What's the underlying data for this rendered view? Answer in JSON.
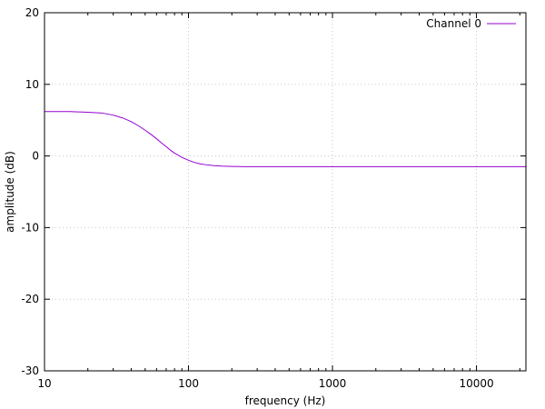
{
  "chart_data": {
    "type": "line",
    "title": "",
    "xlabel": "frequency (Hz)",
    "ylabel": "amplitude (dB)",
    "xscale": "log",
    "xlim": [
      10,
      22050
    ],
    "ylim": [
      -30,
      20
    ],
    "grid": true,
    "legend_position": "top-right",
    "x_ticks": [
      10,
      100,
      1000,
      10000
    ],
    "x_tick_labels": [
      "10",
      "100",
      "1000",
      "10000"
    ],
    "y_ticks": [
      -30,
      -20,
      -10,
      0,
      10,
      20
    ],
    "y_tick_labels": [
      "-30",
      "-20",
      "-10",
      "0",
      "10",
      "20"
    ],
    "series": [
      {
        "name": "Channel 0",
        "color": "#9400d3",
        "x": [
          10,
          15,
          20,
          25,
          30,
          35,
          40,
          45,
          50,
          55,
          60,
          65,
          70,
          75,
          80,
          85,
          90,
          100,
          110,
          120,
          130,
          150,
          170,
          200,
          250,
          300,
          400,
          600,
          1000,
          2000,
          5000,
          10000,
          22050
        ],
        "y": [
          6.2,
          6.2,
          6.1,
          6.0,
          5.7,
          5.3,
          4.8,
          4.2,
          3.6,
          3.0,
          2.4,
          1.8,
          1.3,
          0.8,
          0.4,
          0.1,
          -0.2,
          -0.6,
          -0.9,
          -1.1,
          -1.2,
          -1.35,
          -1.42,
          -1.47,
          -1.5,
          -1.5,
          -1.5,
          -1.5,
          -1.5,
          -1.5,
          -1.5,
          -1.5,
          -1.5
        ]
      }
    ]
  }
}
